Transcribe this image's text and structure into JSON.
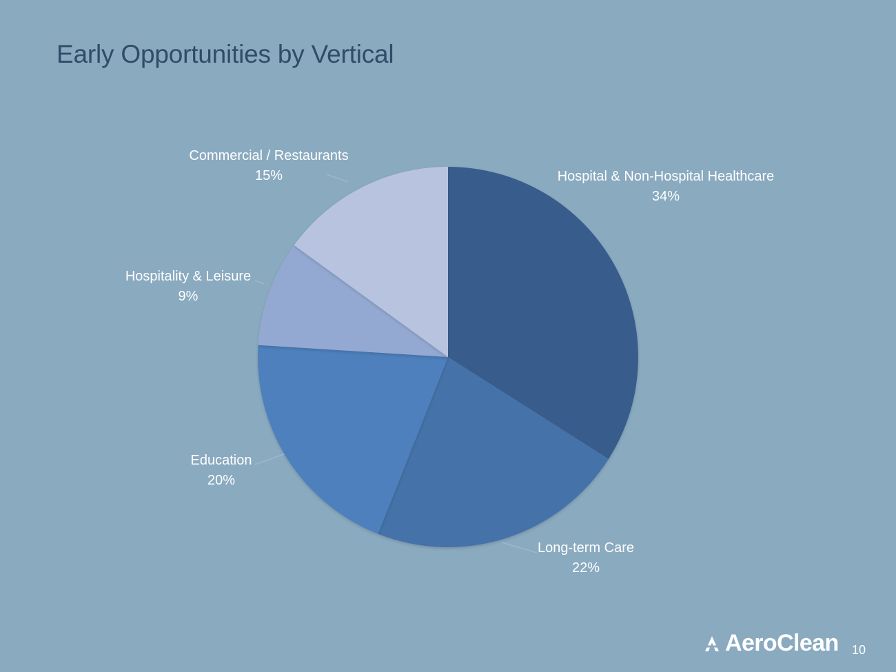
{
  "slide": {
    "title": "Early Opportunities by Vertical",
    "page_number": "10",
    "logo_text": "AeroClean"
  },
  "chart_data": {
    "type": "pie",
    "title": "",
    "categories": [
      "Hospital & Non-Hospital Healthcare",
      "Long-term Care",
      "Education",
      "Hospitality & Leisure",
      "Commercial / Restaurants"
    ],
    "values": [
      34,
      22,
      20,
      9,
      15
    ],
    "value_labels": [
      "34%",
      "22%",
      "20%",
      "9%",
      "15%"
    ],
    "colors": [
      "#395d8c",
      "#4472a8",
      "#4e80bd",
      "#94a9d2",
      "#b8c4df"
    ],
    "start_angle_degrees": 0,
    "direction": "clockwise",
    "legend": "none",
    "data_label_mode": "category-and-percent-outside"
  }
}
